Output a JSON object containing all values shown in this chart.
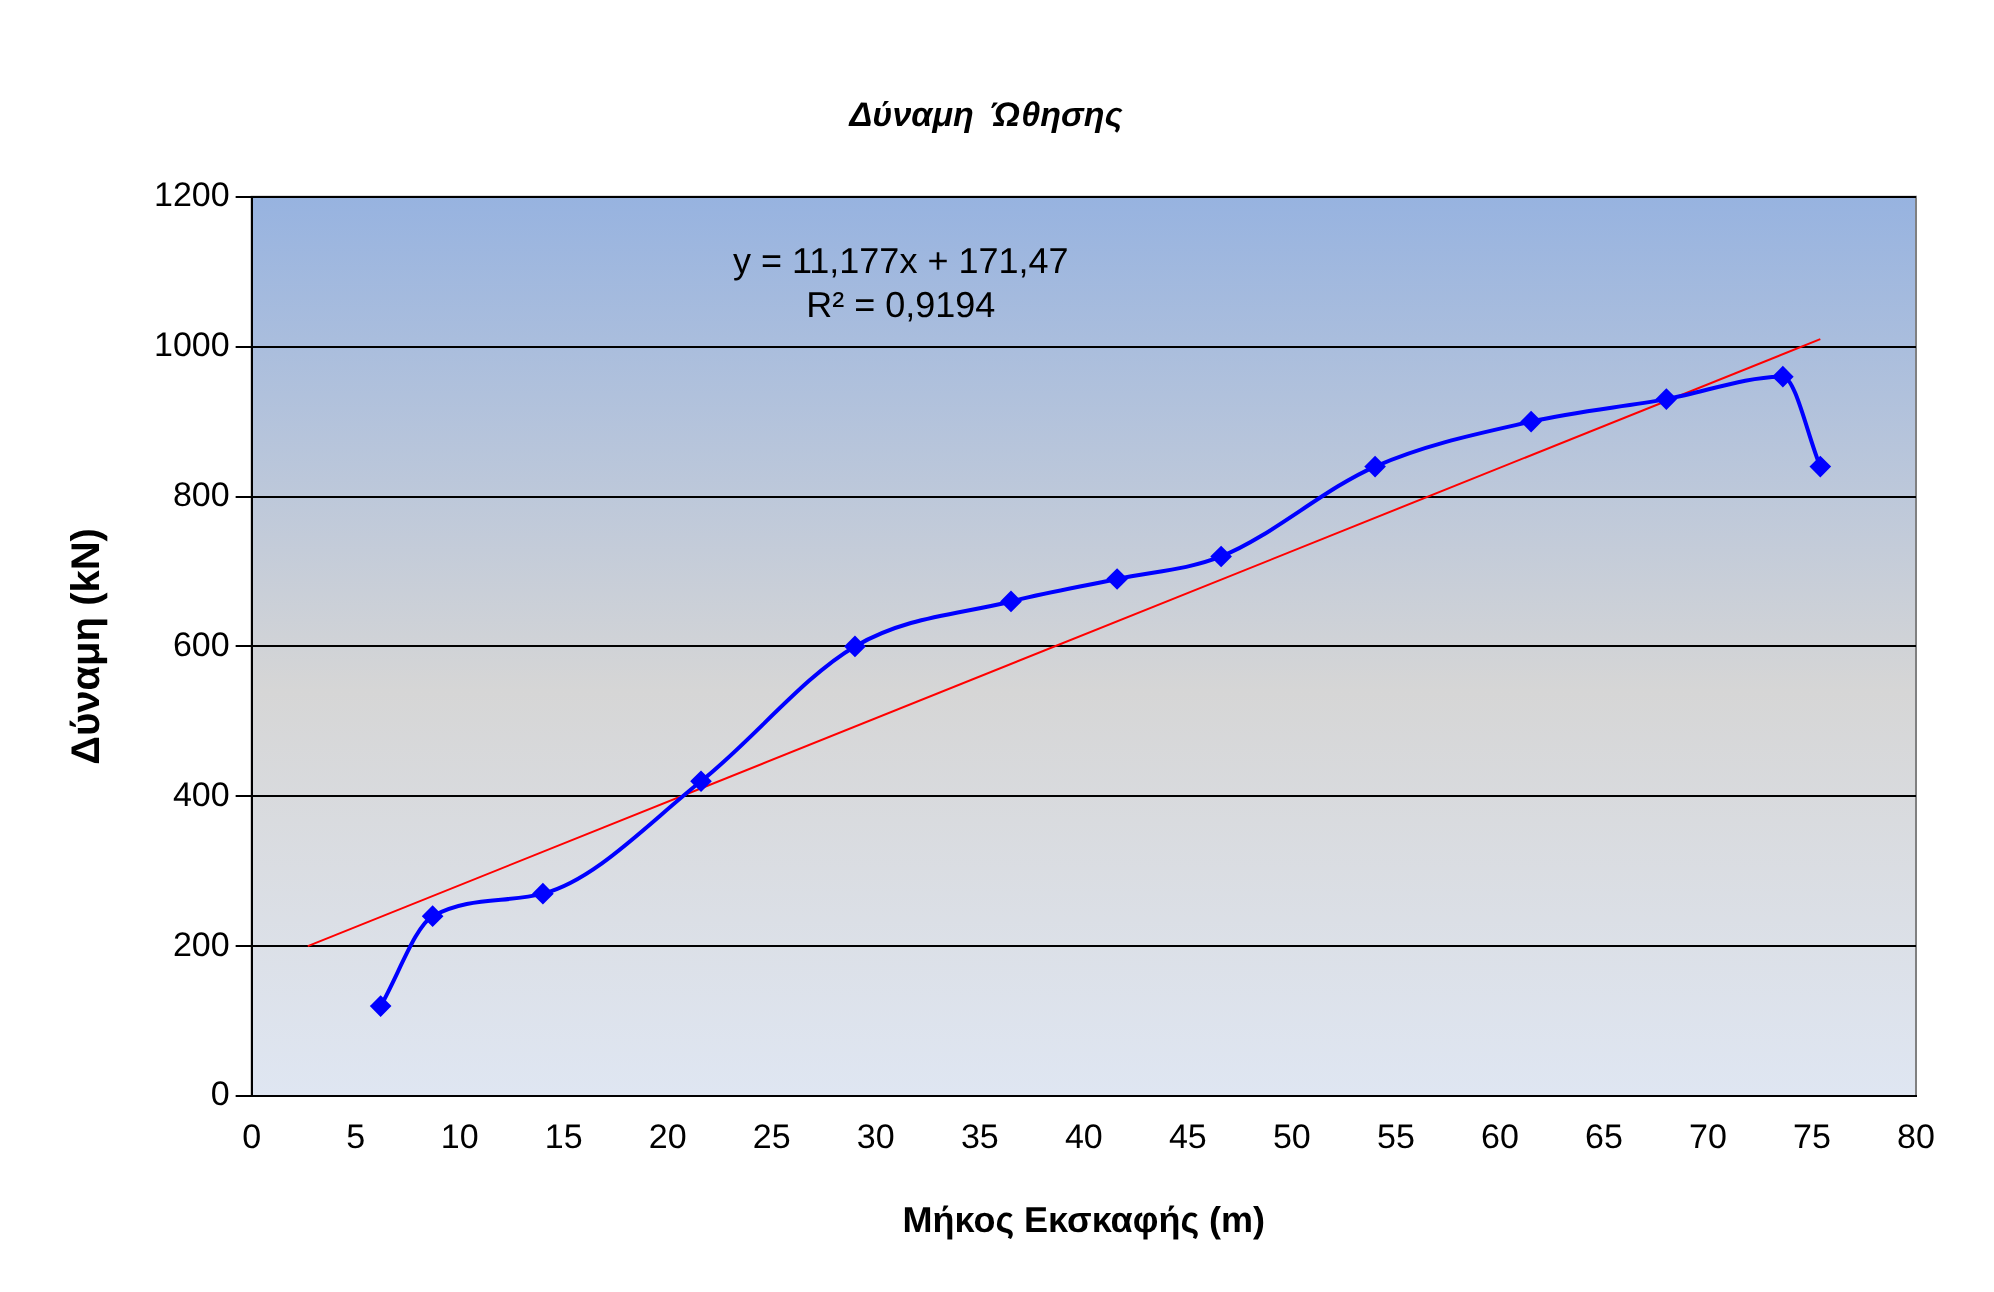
{
  "chart_data": {
    "type": "line",
    "title": "Δύναμη  Ώθησης",
    "xlabel": "Μήκος Εκσκαφής (m)",
    "ylabel": "Δύναμη (kN)",
    "x": [
      6.2,
      8.7,
      14.0,
      21.6,
      29.0,
      36.5,
      41.6,
      46.6,
      54.0,
      61.5,
      68.0,
      73.6,
      75.4
    ],
    "series": [
      {
        "color": "#0000ff",
        "values": [
          120,
          240,
          270,
          420,
          600,
          660,
          690,
          720,
          840,
          900,
          930,
          960,
          840
        ],
        "marker": "diamond"
      },
      {
        "type": "line",
        "color": "#ff0000",
        "x": [
          2.7,
          75.4
        ],
        "values": [
          200,
          1010
        ],
        "marker": "none"
      }
    ],
    "xlim": [
      0,
      80
    ],
    "xticks": [
      0,
      5,
      10,
      15,
      20,
      25,
      30,
      35,
      40,
      45,
      50,
      55,
      60,
      65,
      70,
      75,
      80
    ],
    "ylim": [
      0,
      1200
    ],
    "yticks": [
      0,
      200,
      400,
      600,
      800,
      1000,
      1200
    ],
    "grid": "y",
    "legend": false,
    "annotations": [
      "y = 11,177x + 171,47",
      "R² = 0,9194"
    ]
  }
}
